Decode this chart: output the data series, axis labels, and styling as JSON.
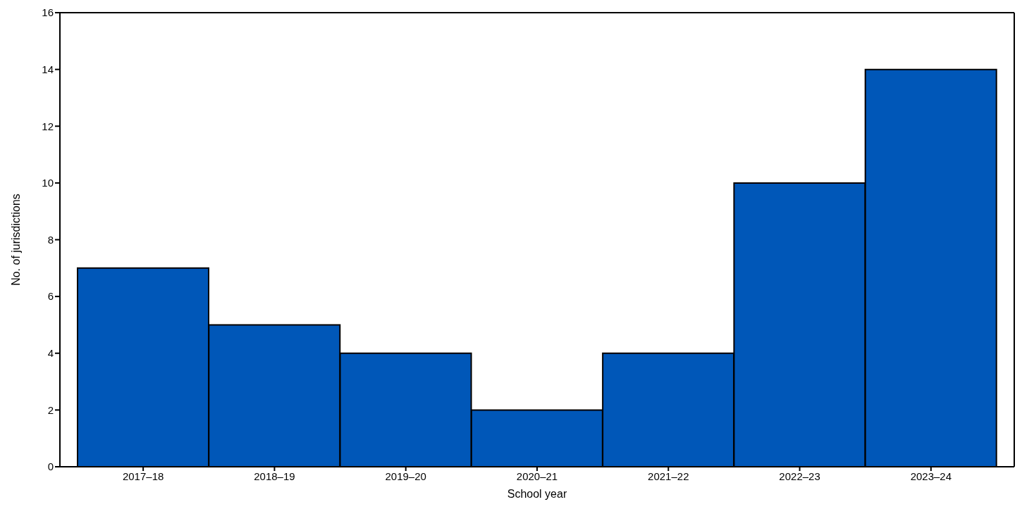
{
  "chart_data": {
    "type": "bar",
    "xlabel": "School year",
    "ylabel": "No. of jurisdictions",
    "categories": [
      "2017–18",
      "2018–19",
      "2019–20",
      "2020–21",
      "2021–22",
      "2022–23",
      "2023–24"
    ],
    "values": [
      7,
      5,
      4,
      2,
      4,
      10,
      14
    ],
    "color": "#0057b8",
    "ylim": [
      0,
      16
    ],
    "yticks": [
      0,
      2,
      4,
      6,
      8,
      10,
      12,
      14,
      16
    ],
    "grid": false
  }
}
